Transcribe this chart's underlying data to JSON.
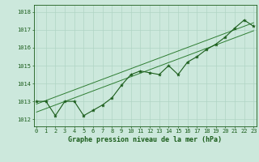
{
  "hours": [
    0,
    1,
    2,
    3,
    4,
    5,
    6,
    7,
    8,
    9,
    10,
    11,
    12,
    13,
    14,
    15,
    16,
    17,
    18,
    19,
    20,
    21,
    22,
    23
  ],
  "pressure": [
    1013.0,
    1013.0,
    1012.2,
    1013.0,
    1013.0,
    1012.2,
    1012.5,
    1012.8,
    1013.2,
    1013.9,
    1014.5,
    1014.7,
    1014.6,
    1014.5,
    1015.0,
    1014.5,
    1015.2,
    1015.5,
    1015.9,
    1016.2,
    1016.6,
    1017.1,
    1017.55,
    1017.2
  ],
  "trend_upper": [
    1012.85,
    1017.4
  ],
  "trend_lower": [
    1012.4,
    1016.95
  ],
  "ylim": [
    1011.6,
    1018.4
  ],
  "xlim": [
    -0.3,
    23.3
  ],
  "yticks": [
    1012,
    1013,
    1014,
    1015,
    1016,
    1017,
    1018
  ],
  "xticks": [
    0,
    1,
    2,
    3,
    4,
    5,
    6,
    7,
    8,
    9,
    10,
    11,
    12,
    13,
    14,
    15,
    16,
    17,
    18,
    19,
    20,
    21,
    22,
    23
  ],
  "bg_color": "#cce8dc",
  "line_color": "#1a5c1a",
  "trend_color": "#2e7d32",
  "grid_color": "#b0d4c4",
  "title": "Graphe pression niveau de la mer (hPa)",
  "title_color": "#1a5c1a",
  "axis_color": "#1a5c1a",
  "tick_color": "#1a5c1a",
  "tick_fontsize": 5.0,
  "title_fontsize": 6.0
}
